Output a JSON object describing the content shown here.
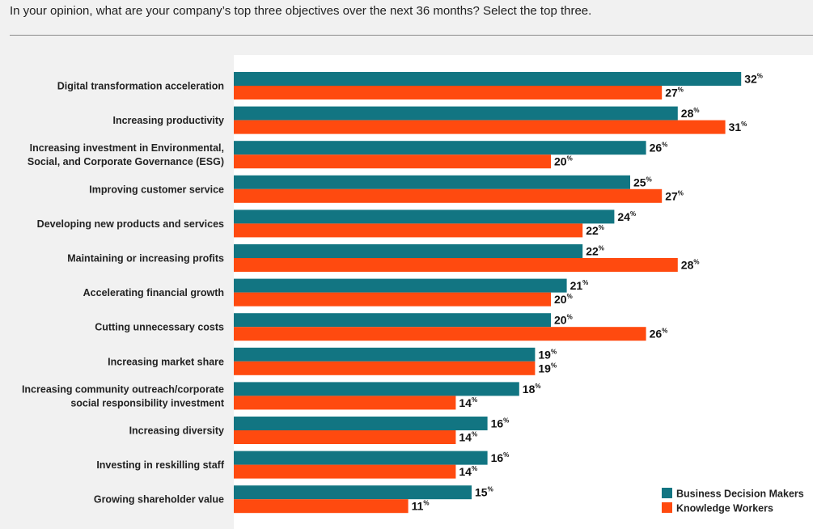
{
  "page": {
    "question": "In your opinion, what are your company’s top three objectives over the next 36 months? Select the top three."
  },
  "colors": {
    "series_1": "#127582",
    "series_2": "#ff4a0f",
    "plot_background": "#ffffff",
    "page_background": "#f1f1f1"
  },
  "chart_data": {
    "type": "bar",
    "orientation": "horizontal",
    "title": "",
    "xlabel": "",
    "ylabel": "",
    "xlim": [
      0,
      32
    ],
    "grid": false,
    "legend_position": "bottom-right",
    "value_suffix": "%",
    "categories": [
      [
        "Digital transformation acceleration"
      ],
      [
        "Increasing productivity"
      ],
      [
        "Increasing investment in Environmental,",
        "Social, and Corporate Governance (ESG)"
      ],
      [
        "Improving customer service"
      ],
      [
        "Developing new products and services"
      ],
      [
        "Maintaining or increasing profits"
      ],
      [
        "Accelerating financial growth"
      ],
      [
        "Cutting unnecessary costs"
      ],
      [
        "Increasing market share"
      ],
      [
        "Increasing community outreach/corporate",
        "social responsibility investment"
      ],
      [
        "Increasing diversity"
      ],
      [
        "Investing in reskilling staff"
      ],
      [
        "Growing shareholder value"
      ]
    ],
    "series": [
      {
        "name": "Business Decision Makers",
        "color": "#127582",
        "values": [
          32,
          28,
          26,
          25,
          24,
          22,
          21,
          20,
          19,
          18,
          16,
          16,
          15
        ]
      },
      {
        "name": "Knowledge Workers",
        "color": "#ff4a0f",
        "values": [
          27,
          31,
          20,
          27,
          22,
          28,
          20,
          26,
          19,
          14,
          14,
          14,
          11
        ]
      }
    ]
  }
}
